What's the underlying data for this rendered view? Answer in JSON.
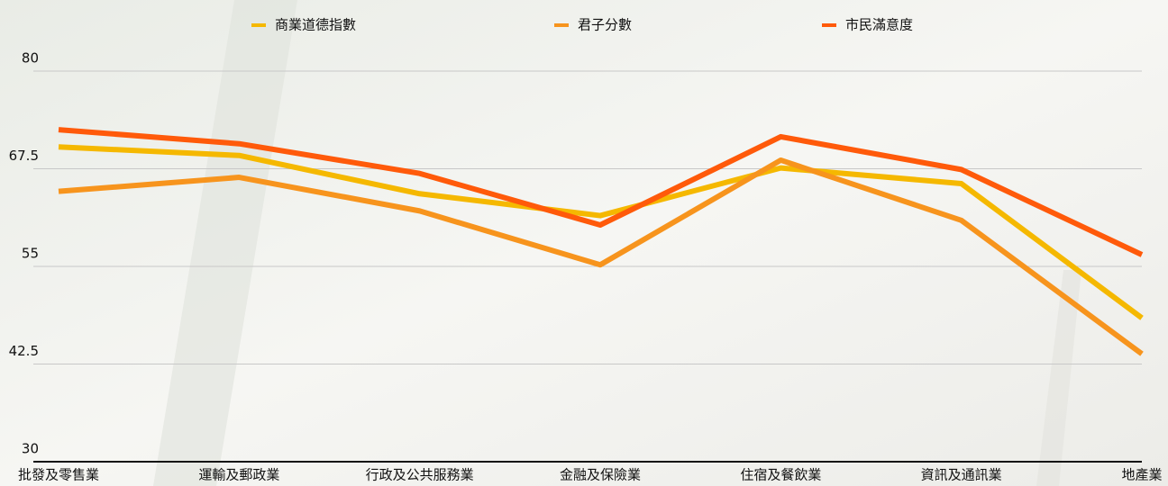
{
  "chart_data": {
    "type": "line",
    "categories": [
      "批發及零售業",
      "運輸及郵政業",
      "行政及公共服務業",
      "金融及保險業",
      "住宿及餐飲業",
      "資訊及通訊業",
      "地產業"
    ],
    "series": [
      {
        "name": "商業道德指數",
        "color": "#f5b800",
        "values": [
          70.3,
          69.2,
          64.3,
          61.5,
          67.6,
          65.6,
          48.4
        ]
      },
      {
        "name": "君子分數",
        "color": "#f7941d",
        "values": [
          64.6,
          66.4,
          62.1,
          55.2,
          68.6,
          60.9,
          43.8
        ]
      },
      {
        "name": "市民滿意度",
        "color": "#ff5a0a",
        "values": [
          72.5,
          70.7,
          66.9,
          60.3,
          71.6,
          67.4,
          56.5
        ]
      }
    ],
    "ylim": [
      30,
      80
    ],
    "yticks": [
      30,
      42.5,
      55,
      67.5,
      80
    ],
    "grid": true,
    "legend": "top"
  }
}
